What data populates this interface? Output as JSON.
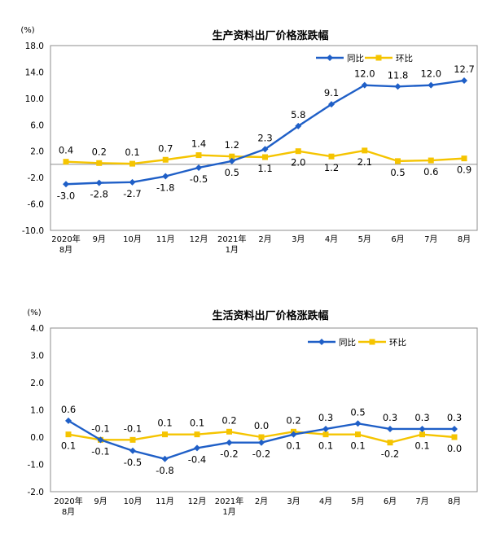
{
  "chart_data": [
    {
      "type": "line",
      "title": "生产资料出厂价格涨跌幅",
      "unit": "(%)",
      "categories": [
        "2020年8月",
        "9月",
        "10月",
        "11月",
        "12月",
        "2021年1月",
        "2月",
        "3月",
        "4月",
        "5月",
        "6月",
        "7月",
        "8月"
      ],
      "category_lines": [
        [
          "2020年",
          "8月"
        ],
        [
          "9月"
        ],
        [
          "10月"
        ],
        [
          "11月"
        ],
        [
          "12月"
        ],
        [
          "2021年",
          "1月"
        ],
        [
          "2月"
        ],
        [
          "3月"
        ],
        [
          "4月"
        ],
        [
          "5月"
        ],
        [
          "6月"
        ],
        [
          "7月"
        ],
        [
          "8月"
        ]
      ],
      "ylim": [
        -10.0,
        18.0
      ],
      "yticks": [
        "18.0",
        "14.0",
        "10.0",
        "6.0",
        "2.0",
        "-2.0",
        "-6.0",
        "-10.0"
      ],
      "ytick_values": [
        18,
        14,
        10,
        6,
        2,
        -2,
        -6,
        -10
      ],
      "zero_line": true,
      "grid": false,
      "legend_position": "top-right",
      "series": [
        {
          "name": "同比",
          "color": "#1f5fc7",
          "marker": "diamond",
          "values": [
            -3.0,
            -2.8,
            -2.7,
            -1.8,
            -0.5,
            0.5,
            2.3,
            5.8,
            9.1,
            12.0,
            11.8,
            12.0,
            12.7
          ],
          "labels": [
            "-3.0",
            "-2.8",
            "-2.7",
            "-1.8",
            "-0.5",
            "0.5",
            "2.3",
            "5.8",
            "9.1",
            "12.0",
            "11.8",
            "12.0",
            "12.7"
          ],
          "label_pos": [
            "below",
            "below",
            "below",
            "below",
            "below",
            "below",
            "above",
            "above",
            "above",
            "above",
            "above",
            "above",
            "above"
          ]
        },
        {
          "name": "环比",
          "color": "#f5c400",
          "marker": "square",
          "values": [
            0.4,
            0.2,
            0.1,
            0.7,
            1.4,
            1.2,
            1.1,
            2.0,
            1.2,
            2.1,
            0.5,
            0.6,
            0.9
          ],
          "labels": [
            "0.4",
            "0.2",
            "0.1",
            "0.7",
            "1.4",
            "1.2",
            "1.1",
            "2.0",
            "1.2",
            "2.1",
            "0.5",
            "0.6",
            "0.9"
          ],
          "label_pos": [
            "above",
            "above",
            "above",
            "above",
            "above",
            "above",
            "below",
            "below",
            "below",
            "below",
            "below",
            "below",
            "below"
          ]
        }
      ]
    },
    {
      "type": "line",
      "title": "生活资料出厂价格涨跌幅",
      "unit": "(%)",
      "categories": [
        "2020年8月",
        "9月",
        "10月",
        "11月",
        "12月",
        "2021年1月",
        "2月",
        "3月",
        "4月",
        "5月",
        "6月",
        "7月",
        "8月"
      ],
      "category_lines": [
        [
          "2020年",
          "8月"
        ],
        [
          "9月"
        ],
        [
          "10月"
        ],
        [
          "11月"
        ],
        [
          "12月"
        ],
        [
          "2021年",
          "1月"
        ],
        [
          "2月"
        ],
        [
          "3月"
        ],
        [
          "4月"
        ],
        [
          "5月"
        ],
        [
          "6月"
        ],
        [
          "7月"
        ],
        [
          "8月"
        ]
      ],
      "ylim": [
        -2.0,
        4.0
      ],
      "yticks": [
        "4.0",
        "3.0",
        "2.0",
        "1.0",
        "0.0",
        "-1.0",
        "-2.0"
      ],
      "ytick_values": [
        4,
        3,
        2,
        1,
        0,
        -1,
        -2
      ],
      "zero_line": false,
      "grid": false,
      "legend_position": "top-right",
      "series": [
        {
          "name": "同比",
          "color": "#1f5fc7",
          "marker": "diamond",
          "values": [
            0.6,
            -0.1,
            -0.5,
            -0.8,
            -0.4,
            -0.2,
            -0.2,
            0.1,
            0.3,
            0.5,
            0.3,
            0.3,
            0.3
          ],
          "labels": [
            "0.6",
            "-0.1",
            "-0.5",
            "-0.8",
            "-0.4",
            "-0.2",
            "-0.2",
            "0.1",
            "0.3",
            "0.5",
            "0.3",
            "0.3",
            "0.3"
          ],
          "label_pos": [
            "above",
            "below",
            "below",
            "below",
            "below",
            "below",
            "below",
            "below",
            "above",
            "above",
            "above",
            "above",
            "above"
          ]
        },
        {
          "name": "环比",
          "color": "#f5c400",
          "marker": "square",
          "values": [
            0.1,
            -0.1,
            -0.1,
            0.1,
            0.1,
            0.2,
            0.0,
            0.2,
            0.1,
            0.1,
            -0.2,
            0.1,
            0.0
          ],
          "labels": [
            "0.1",
            "-0.1",
            "-0.1",
            "0.1",
            "0.1",
            "0.2",
            "0.0",
            "0.2",
            "0.1",
            "0.1",
            "-0.2",
            "0.1",
            "0.0"
          ],
          "label_pos": [
            "below",
            "above",
            "above",
            "above",
            "above",
            "above",
            "above",
            "above",
            "below",
            "below",
            "below",
            "below",
            "below"
          ]
        }
      ]
    }
  ]
}
